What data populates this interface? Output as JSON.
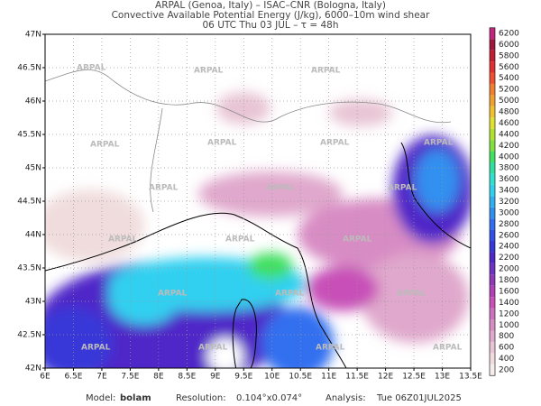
{
  "header": {
    "line1": "ARPAL (Genoa, Italy)  –  ISAC–CNR (Bologna, Italy)",
    "line2": "Convective Available Potential Energy (J/kg), 6000–10m wind shear",
    "line3": "06 UTC Thu 03 JUL  –  τ = 48h"
  },
  "map": {
    "lat_labels": [
      "42N",
      "42.5N",
      "43N",
      "43.5N",
      "44N",
      "44.5N",
      "45N",
      "45.5N",
      "46N",
      "46.5N",
      "47N"
    ],
    "lon_labels": [
      "6E",
      "6.5E",
      "7E",
      "7.5E",
      "8E",
      "8.5E",
      "9E",
      "9.5E",
      "10E",
      "10.5E",
      "11E",
      "11.5E",
      "12E",
      "12.5E",
      "13E",
      "13.5E"
    ],
    "watermark": "ARPAL"
  },
  "colorbar": {
    "labels": [
      200,
      400,
      600,
      800,
      1000,
      1200,
      1400,
      1600,
      1800,
      2000,
      2200,
      2400,
      2600,
      2800,
      3000,
      3200,
      3400,
      3600,
      3800,
      4000,
      4200,
      4400,
      4600,
      4800,
      5000,
      5200,
      5400,
      5600,
      5800,
      6000,
      6200
    ],
    "colors": [
      "#f6eeee",
      "#f0dcdc",
      "#e8c4d4",
      "#e0a8cc",
      "#d88cc4",
      "#d070c0",
      "#c850b8",
      "#b040b8",
      "#9038b8",
      "#7030c0",
      "#5028c8",
      "#3838d8",
      "#3050e8",
      "#3070f0",
      "#3090f0",
      "#30b0f0",
      "#30d0f0",
      "#30e0d0",
      "#30e0a0",
      "#40e060",
      "#80e040",
      "#b0e030",
      "#e0e030",
      "#f0c030",
      "#f0a030",
      "#f08030",
      "#f05030",
      "#e03030",
      "#c02030",
      "#a01840",
      "#c02880"
    ]
  },
  "footer": {
    "model_label": "Model:",
    "model": "bolam",
    "resolution_label": "Resolution:",
    "resolution": "0.104°x0.074°",
    "analysis_label": "Analysis:",
    "analysis": "Tue 06Z01JUL2025"
  }
}
